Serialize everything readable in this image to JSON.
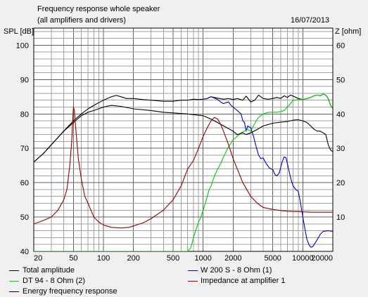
{
  "header": {
    "title": "Frequency response whole speaker",
    "subtitle": "(all amplifiers and drivers)",
    "date": "16/07/2013"
  },
  "colors": {
    "total": "#000000",
    "dt94": "#00cc00",
    "energy": "#000000",
    "w200": "#0000cc",
    "impedance": "#990000",
    "grid": "#a0a0a0",
    "grid_major": "#606060",
    "plot_bg": "#ffffff"
  },
  "chart_data": {
    "type": "line",
    "title": "Frequency response whole speaker",
    "subtitle": "(all amplifiers and drivers)",
    "xlabel": "",
    "ylabel": "SPL [dB]",
    "y2label": "Z [ohm]",
    "xscale": "log",
    "xlim": [
      20,
      20000
    ],
    "ylim": [
      40,
      105
    ],
    "y2lim": [
      0,
      65
    ],
    "grid": true,
    "x_ticks": [
      {
        "value": 20,
        "label": "20"
      },
      {
        "value": 50,
        "label": "50"
      },
      {
        "value": 100,
        "label": "100"
      },
      {
        "value": 200,
        "label": "200"
      },
      {
        "value": 500,
        "label": "500"
      },
      {
        "value": 1000,
        "label": "1000"
      },
      {
        "value": 2000,
        "label": "2000"
      },
      {
        "value": 5000,
        "label": "5000"
      },
      {
        "value": 10000,
        "label": "10000"
      },
      {
        "value": 20000,
        "label": "20000"
      }
    ],
    "y_ticks": [
      {
        "value": 40,
        "label": "40"
      },
      {
        "value": 50,
        "label": "50"
      },
      {
        "value": 60,
        "label": "60"
      },
      {
        "value": 70,
        "label": "70"
      },
      {
        "value": 80,
        "label": "80"
      },
      {
        "value": 90,
        "label": "90"
      },
      {
        "value": 100,
        "label": "100"
      }
    ],
    "y2_ticks": [
      {
        "value": 10,
        "label": "10"
      },
      {
        "value": 20,
        "label": "20"
      },
      {
        "value": 30,
        "label": "30"
      },
      {
        "value": 40,
        "label": "40"
      },
      {
        "value": 50,
        "label": "50"
      },
      {
        "value": 60,
        "label": "60"
      }
    ],
    "series": [
      {
        "name": "Total amplitude",
        "color": "#000000",
        "axis": "left",
        "points": [
          [
            20,
            66
          ],
          [
            25,
            68.5
          ],
          [
            30,
            71
          ],
          [
            40,
            75
          ],
          [
            50,
            78
          ],
          [
            60,
            80
          ],
          [
            70,
            81.5
          ],
          [
            80,
            82.5
          ],
          [
            90,
            83.3
          ],
          [
            100,
            84
          ],
          [
            120,
            85
          ],
          [
            135,
            85.4
          ],
          [
            150,
            85
          ],
          [
            170,
            84.5
          ],
          [
            200,
            84.5
          ],
          [
            250,
            84.2
          ],
          [
            300,
            84
          ],
          [
            400,
            83.7
          ],
          [
            500,
            83.7
          ],
          [
            600,
            84
          ],
          [
            700,
            84
          ],
          [
            800,
            84.3
          ],
          [
            900,
            84.2
          ],
          [
            1000,
            84.3
          ],
          [
            1100,
            84.5
          ],
          [
            1200,
            85
          ],
          [
            1300,
            84.8
          ],
          [
            1400,
            84.6
          ],
          [
            1600,
            84.3
          ],
          [
            1800,
            84.5
          ],
          [
            2000,
            84.2
          ],
          [
            2200,
            84.5
          ],
          [
            2500,
            84
          ],
          [
            2700,
            85.2
          ],
          [
            3000,
            83.5
          ],
          [
            3300,
            84
          ],
          [
            3600,
            85.5
          ],
          [
            4000,
            84.5
          ],
          [
            4500,
            84.3
          ],
          [
            5000,
            84.5
          ],
          [
            5500,
            84.8
          ],
          [
            6000,
            84.5
          ],
          [
            6500,
            85.3
          ],
          [
            7000,
            84.8
          ],
          [
            7500,
            85.5
          ],
          [
            8000,
            85.2
          ],
          [
            9000,
            84.5
          ],
          [
            10000,
            84.2
          ],
          [
            11000,
            84.5
          ],
          [
            12000,
            84.8
          ],
          [
            13000,
            85.3
          ],
          [
            14000,
            85.5
          ],
          [
            15000,
            85.3
          ],
          [
            16000,
            85.8
          ],
          [
            17000,
            85.5
          ],
          [
            18000,
            84.5
          ],
          [
            19000,
            82.5
          ],
          [
            20000,
            81.5
          ]
        ]
      },
      {
        "name": "W 200 S - 8 Ohm (1)",
        "color": "#0000cc",
        "axis": "left",
        "points": [
          [
            1000,
            84.3
          ],
          [
            1100,
            84.5
          ],
          [
            1200,
            85
          ],
          [
            1300,
            84.6
          ],
          [
            1400,
            84.2
          ],
          [
            1500,
            83.5
          ],
          [
            1600,
            83
          ],
          [
            1700,
            83.3
          ],
          [
            1800,
            83.5
          ],
          [
            1900,
            82.5
          ],
          [
            2000,
            82
          ],
          [
            2200,
            81
          ],
          [
            2400,
            80
          ],
          [
            2500,
            78
          ],
          [
            2600,
            77.5
          ],
          [
            2700,
            75
          ],
          [
            2800,
            76.5
          ],
          [
            3000,
            76
          ],
          [
            3200,
            73.5
          ],
          [
            3400,
            70.5
          ],
          [
            3600,
            68
          ],
          [
            3800,
            67
          ],
          [
            4000,
            67.2
          ],
          [
            4300,
            65.5
          ],
          [
            4600,
            64.3
          ],
          [
            5000,
            63.8
          ],
          [
            5300,
            62.2
          ],
          [
            5500,
            62
          ],
          [
            5800,
            62.8
          ],
          [
            6200,
            66
          ],
          [
            6500,
            67.5
          ],
          [
            6800,
            67.2
          ],
          [
            7200,
            64
          ],
          [
            7600,
            61
          ],
          [
            8000,
            59
          ],
          [
            8500,
            58
          ],
          [
            9000,
            57.5
          ],
          [
            9500,
            54
          ],
          [
            10000,
            50
          ],
          [
            10500,
            46.5
          ],
          [
            11000,
            43.5
          ],
          [
            11500,
            42
          ],
          [
            12000,
            41.2
          ],
          [
            12500,
            41.3
          ],
          [
            13000,
            42
          ],
          [
            14000,
            43.5
          ],
          [
            15000,
            45
          ],
          [
            16000,
            45.8
          ],
          [
            18000,
            46
          ],
          [
            20000,
            45.8
          ]
        ]
      },
      {
        "name": "DT 94 - 8 Ohm (2)",
        "color": "#00cc00",
        "axis": "left",
        "points": [
          [
            20,
            40
          ],
          [
            700,
            40
          ],
          [
            750,
            41
          ],
          [
            800,
            44
          ],
          [
            850,
            46.5
          ],
          [
            900,
            48.5
          ],
          [
            950,
            50
          ],
          [
            1000,
            52
          ],
          [
            1050,
            54
          ],
          [
            1100,
            56
          ],
          [
            1150,
            58
          ],
          [
            1200,
            59
          ],
          [
            1300,
            62
          ],
          [
            1400,
            64
          ],
          [
            1500,
            65.5
          ],
          [
            1600,
            67.5
          ],
          [
            1700,
            69
          ],
          [
            1800,
            70.5
          ],
          [
            1900,
            71.5
          ],
          [
            2000,
            72.5
          ],
          [
            2200,
            73.5
          ],
          [
            2400,
            74.5
          ],
          [
            2600,
            75
          ],
          [
            2800,
            75.5
          ],
          [
            3000,
            75
          ],
          [
            3200,
            76.5
          ],
          [
            3400,
            78
          ],
          [
            3600,
            79
          ],
          [
            3800,
            79.5
          ],
          [
            4000,
            80
          ],
          [
            4500,
            80.5
          ],
          [
            5000,
            80.5
          ],
          [
            5500,
            80.5
          ],
          [
            6000,
            80.7
          ],
          [
            6500,
            81
          ],
          [
            7000,
            82
          ],
          [
            7500,
            83
          ],
          [
            8000,
            84
          ],
          [
            8500,
            84
          ],
          [
            9000,
            84.3
          ],
          [
            10000,
            84.2
          ],
          [
            11000,
            84.5
          ],
          [
            12000,
            84.8
          ],
          [
            13000,
            85.3
          ],
          [
            14000,
            85.5
          ],
          [
            15000,
            85.3
          ],
          [
            16000,
            85.8
          ],
          [
            17000,
            85.5
          ],
          [
            18000,
            84.5
          ],
          [
            19000,
            82.5
          ],
          [
            20000,
            81.5
          ]
        ]
      },
      {
        "name": "Energy frequency response",
        "color": "#000000",
        "axis": "left",
        "points": [
          [
            20,
            66
          ],
          [
            25,
            68.5
          ],
          [
            30,
            71
          ],
          [
            40,
            75
          ],
          [
            50,
            77.5
          ],
          [
            60,
            79.5
          ],
          [
            70,
            80.5
          ],
          [
            80,
            81
          ],
          [
            100,
            82
          ],
          [
            120,
            82.5
          ],
          [
            150,
            82.2
          ],
          [
            200,
            81.5
          ],
          [
            300,
            81
          ],
          [
            400,
            80.5
          ],
          [
            500,
            80.3
          ],
          [
            700,
            80
          ],
          [
            800,
            79.8
          ],
          [
            1000,
            79.5
          ],
          [
            1200,
            78.5
          ],
          [
            1500,
            77
          ],
          [
            2000,
            75
          ],
          [
            2200,
            74
          ],
          [
            2500,
            74.5
          ],
          [
            2700,
            74
          ],
          [
            3000,
            74.5
          ],
          [
            3500,
            75.5
          ],
          [
            4000,
            76.5
          ],
          [
            5000,
            77.3
          ],
          [
            6000,
            77.6
          ],
          [
            7000,
            77.8
          ],
          [
            8000,
            78.2
          ],
          [
            9000,
            78.3
          ],
          [
            10000,
            78
          ],
          [
            11000,
            77.5
          ],
          [
            12000,
            76.5
          ],
          [
            13000,
            75.5
          ],
          [
            14000,
            75
          ],
          [
            15000,
            75
          ],
          [
            16000,
            74.5
          ],
          [
            17000,
            74
          ],
          [
            18000,
            71
          ],
          [
            19000,
            69.5
          ],
          [
            20000,
            69
          ]
        ]
      },
      {
        "name": "Impedance at amplifier 1",
        "color": "#990000",
        "axis": "right",
        "points": [
          [
            20,
            8
          ],
          [
            25,
            9
          ],
          [
            30,
            10
          ],
          [
            35,
            12
          ],
          [
            40,
            15
          ],
          [
            43,
            18
          ],
          [
            46,
            25
          ],
          [
            48,
            32
          ],
          [
            49.5,
            40
          ],
          [
            50,
            42
          ],
          [
            51,
            41
          ],
          [
            53,
            35
          ],
          [
            56,
            27
          ],
          [
            60,
            21
          ],
          [
            65,
            16
          ],
          [
            70,
            14
          ],
          [
            80,
            10
          ],
          [
            90,
            8.5
          ],
          [
            100,
            7.7
          ],
          [
            120,
            7
          ],
          [
            150,
            6.8
          ],
          [
            180,
            7
          ],
          [
            200,
            7.4
          ],
          [
            250,
            8.3
          ],
          [
            300,
            9.5
          ],
          [
            400,
            12
          ],
          [
            500,
            15
          ],
          [
            600,
            19
          ],
          [
            700,
            24
          ],
          [
            800,
            26.5
          ],
          [
            900,
            30
          ],
          [
            1000,
            33.5
          ],
          [
            1100,
            36
          ],
          [
            1200,
            38
          ],
          [
            1300,
            39
          ],
          [
            1400,
            38.5
          ],
          [
            1500,
            37
          ],
          [
            1600,
            35
          ],
          [
            1800,
            31
          ],
          [
            2000,
            27
          ],
          [
            2500,
            20
          ],
          [
            3000,
            16
          ],
          [
            3500,
            14
          ],
          [
            4000,
            12.8
          ],
          [
            5000,
            12.2
          ],
          [
            6000,
            11.9
          ],
          [
            7000,
            11.7
          ],
          [
            8000,
            11.6
          ],
          [
            10000,
            11.5
          ],
          [
            12000,
            11.4
          ],
          [
            15000,
            11.4
          ],
          [
            20000,
            11.4
          ]
        ]
      }
    ]
  },
  "legend": [
    {
      "label": "Total amplitude",
      "color": "#000000"
    },
    {
      "label": "W 200 S - 8 Ohm (1)",
      "color": "#0000cc"
    },
    {
      "label": "DT 94 - 8 Ohm (2)",
      "color": "#00cc00"
    },
    {
      "label": "Impedance at amplifier 1",
      "color": "#990000"
    },
    {
      "label": "Energy frequency response",
      "color": "#000000"
    }
  ]
}
